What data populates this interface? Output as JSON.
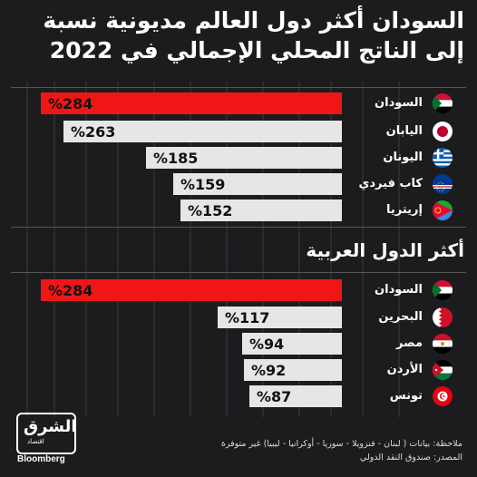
{
  "title": "السودان أكثر دول العالم مديونية نسبة إلى الناتج المحلي الإجمالي في 2022",
  "colors": {
    "highlight": "#f01616",
    "bar": "#e6e6e6",
    "background": "#1c1c1e"
  },
  "chart_data": [
    {
      "type": "bar",
      "orientation": "horizontal",
      "title": "",
      "categories": [
        "السودان",
        "اليابان",
        "اليونان",
        "كاب فيردي",
        "إريتريا"
      ],
      "values": [
        284,
        263,
        185,
        159,
        152
      ],
      "labels": [
        "%284",
        "%263",
        "%185",
        "%159",
        "%152"
      ],
      "flags": [
        "sudan-flag",
        "japan-flag",
        "greece-flag",
        "cape-verde-flag",
        "eritrea-flag"
      ],
      "highlight_index": 0,
      "xlim": [
        0,
        284
      ]
    },
    {
      "type": "bar",
      "orientation": "horizontal",
      "title": "أكثر الدول العربية",
      "categories": [
        "السودان",
        "البحرين",
        "مصر",
        "الأردن",
        "تونس"
      ],
      "values": [
        284,
        117,
        94,
        92,
        87
      ],
      "labels": [
        "%284",
        "%117",
        "%94",
        "%92",
        "%87"
      ],
      "flags": [
        "sudan-flag",
        "bahrain-flag",
        "egypt-flag",
        "jordan-flag",
        "tunisia-flag"
      ],
      "highlight_index": 0,
      "xlim": [
        0,
        284
      ]
    }
  ],
  "notes": {
    "line1": "ملاحظة: بيانات ( لبنان - فنزويلا - سوريا - أوكرانيا - ليبيا) غير متوفرة",
    "line2": "المصدر: صندوق النقد الدولي"
  },
  "logo": {
    "arabic": "الشرق",
    "arabic_sub": "اقتصاد",
    "english": "Bloomberg"
  }
}
